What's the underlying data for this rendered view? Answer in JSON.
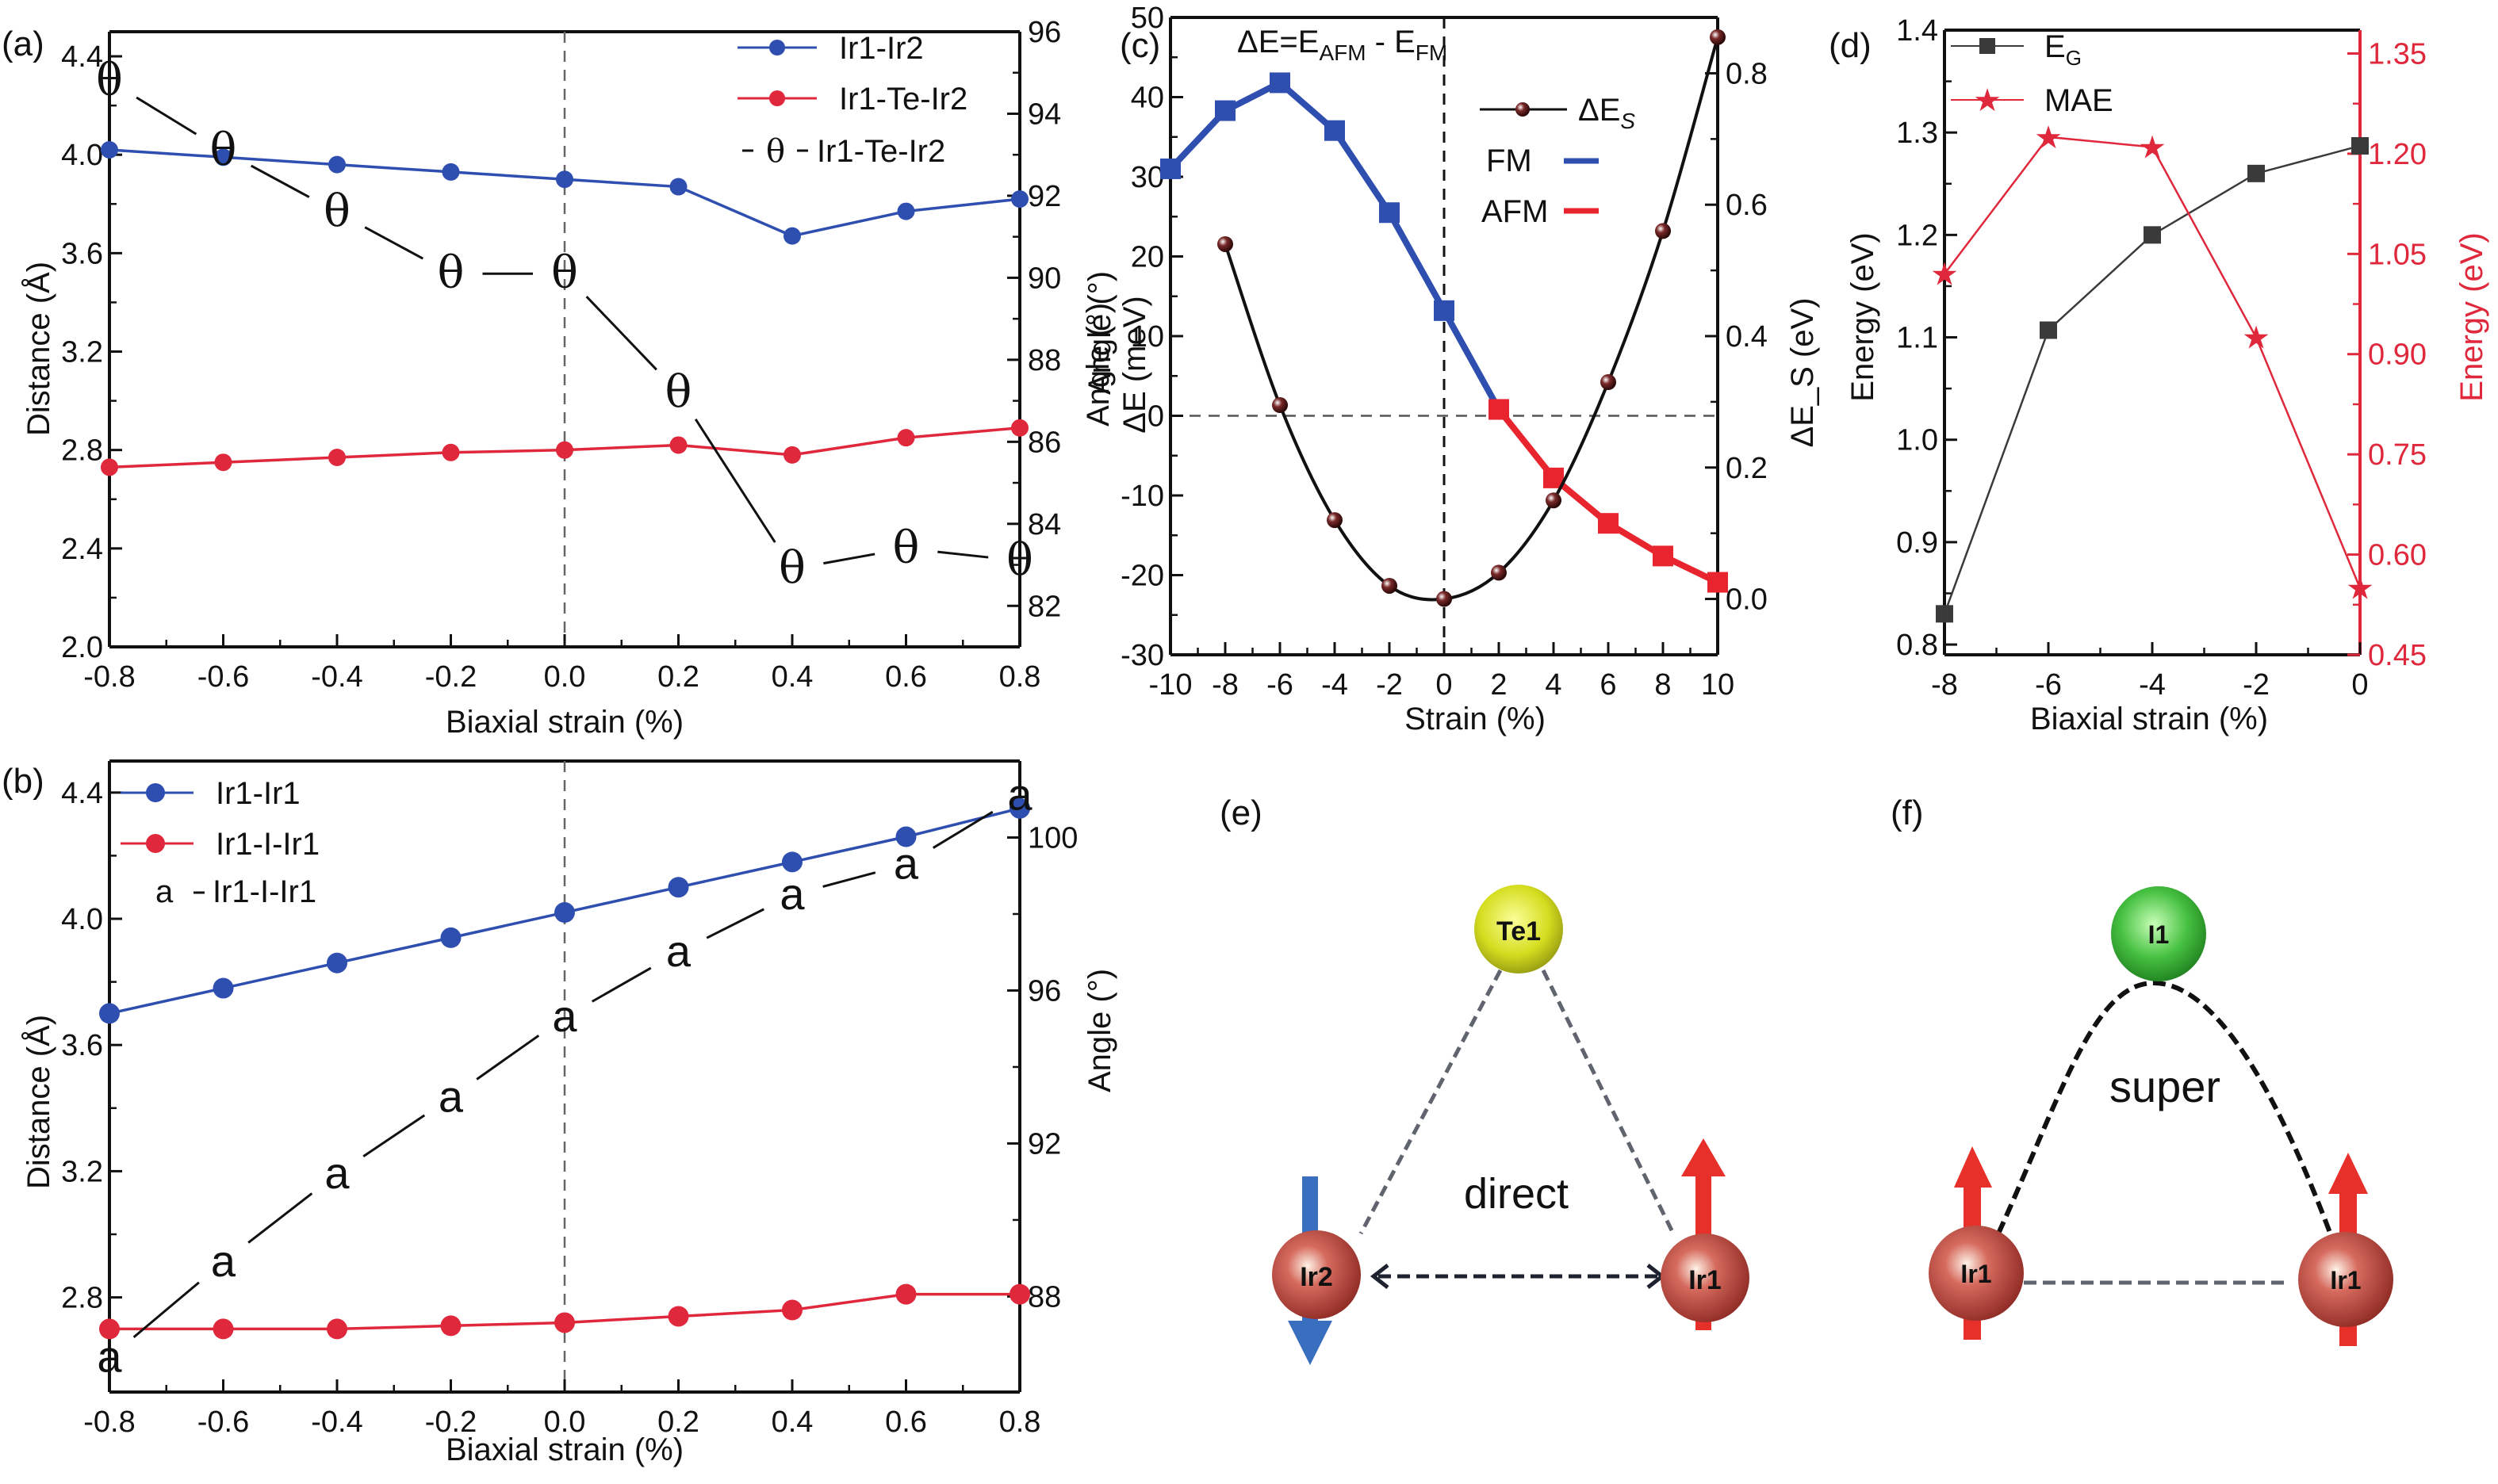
{
  "figure": {
    "panels": {
      "a": {
        "label": "(a)"
      },
      "b": {
        "label": "(b)"
      },
      "c": {
        "label": "(c)",
        "annotation": "ΔE=E_AFM - E_FM",
        "annotation_main": "ΔE=E",
        "annotation_sub1": "AFM",
        "annotation_mid": " - E",
        "annotation_sub2": "FM"
      },
      "d": {
        "label": "(d)"
      },
      "e": {
        "label": "(e)",
        "top_atom": "Te1",
        "left_atom": "Ir2",
        "right_atom": "Ir1",
        "exchange_label": "direct",
        "left_spin": "down",
        "right_spin": "up"
      },
      "f": {
        "label": "(f)",
        "top_atom": "I1",
        "left_atom": "Ir1",
        "right_atom": "Ir1",
        "exchange_label": "super",
        "left_spin": "up",
        "right_spin": "up"
      }
    },
    "colors": {
      "blue": "#2f4fb0",
      "red": "#e0283c",
      "black": "#111111",
      "brown": "#5a1a1a",
      "fm_blue": "#2f4fb0",
      "afm_red": "#e8252f",
      "mae_red": "#e0283c",
      "eg_gray": "#3a3a3a",
      "te_yellow": "#d8e030",
      "i_green": "#3fb83f",
      "ir_red": "#c0443c",
      "spin_blue": "#3a6fc0",
      "spin_red": "#e8302a"
    }
  },
  "chart_data": [
    {
      "id": "a",
      "type": "line",
      "xlabel": "Biaxial strain (%)",
      "ylabel": "Distance (Å)",
      "y2label": "Angle (°)",
      "x": [
        -0.8,
        -0.6,
        -0.4,
        -0.2,
        0.0,
        0.2,
        0.4,
        0.6,
        0.8
      ],
      "xticks": [
        "-0.8",
        "-0.6",
        "-0.4",
        "-0.2",
        "0.0",
        "0.2",
        "0.4",
        "0.6",
        "0.8"
      ],
      "xlim": [
        -0.8,
        0.8
      ],
      "ylim": [
        2.0,
        4.5
      ],
      "yticks": [
        "2.0",
        "2.4",
        "2.8",
        "3.2",
        "3.6",
        "4.0",
        "4.4"
      ],
      "y2lim": [
        81.0,
        96.0
      ],
      "y2ticks": [
        "82",
        "84",
        "86",
        "88",
        "90",
        "92",
        "94",
        "96"
      ],
      "vline_x": 0.0,
      "legend": "top-right",
      "series": [
        {
          "name": "Ir1-Ir2",
          "axis": "left",
          "marker": "circle",
          "color": "#2f4fb0",
          "values": [
            4.02,
            3.99,
            3.96,
            3.93,
            3.9,
            3.87,
            3.67,
            3.77,
            3.82
          ]
        },
        {
          "name": "Ir1-Te-Ir2",
          "axis": "left",
          "marker": "circle",
          "color": "#e0283c",
          "values": [
            2.73,
            2.75,
            2.77,
            2.79,
            2.8,
            2.82,
            2.78,
            2.85,
            2.89
          ]
        },
        {
          "name": "Ir1-Te-Ir2",
          "axis": "right",
          "marker": "θ",
          "color": "#111111",
          "values": [
            94.8,
            93.1,
            91.6,
            90.1,
            90.1,
            87.2,
            82.9,
            83.4,
            83.1
          ]
        }
      ],
      "legend_labels": [
        "Ir1-Ir2",
        "Ir1-Te-Ir2",
        "Ir1-Te-Ir2"
      ],
      "legend_symbol_angle": "θ"
    },
    {
      "id": "b",
      "type": "line",
      "xlabel": "Biaxial strain (%)",
      "ylabel": "Distance (Å)",
      "y2label": "Angle (°)",
      "x": [
        -0.8,
        -0.6,
        -0.4,
        -0.2,
        0.0,
        0.2,
        0.4,
        0.6,
        0.8
      ],
      "xticks": [
        "-0.8",
        "-0.6",
        "-0.4",
        "-0.2",
        "0.0",
        "0.2",
        "0.4",
        "0.6",
        "0.8"
      ],
      "xlim": [
        -0.8,
        0.8
      ],
      "ylim": [
        2.5,
        4.5
      ],
      "yticks": [
        "2.8",
        "3.2",
        "3.6",
        "4.0",
        "4.4"
      ],
      "y2lim": [
        85.5,
        102.0
      ],
      "y2ticks": [
        "88",
        "92",
        "96",
        "100"
      ],
      "vline_x": 0.0,
      "legend": "top-left",
      "series": [
        {
          "name": "Ir1-Ir1",
          "axis": "left",
          "marker": "circle",
          "color": "#2f4fb0",
          "values": [
            3.7,
            3.78,
            3.86,
            3.94,
            4.02,
            4.1,
            4.18,
            4.26,
            4.35
          ]
        },
        {
          "name": "Ir1-I-Ir1",
          "axis": "left",
          "marker": "circle",
          "color": "#e0283c",
          "values": [
            2.7,
            2.7,
            2.7,
            2.71,
            2.72,
            2.74,
            2.76,
            2.81,
            2.81
          ]
        },
        {
          "name": "Ir1-I-Ir1",
          "axis": "right",
          "marker": "a",
          "color": "#111111",
          "values": [
            86.4,
            88.9,
            91.2,
            93.2,
            95.3,
            97.0,
            98.5,
            99.3,
            101.1
          ]
        }
      ],
      "legend_labels": [
        "Ir1-Ir1",
        "Ir1-I-Ir1",
        "Ir1-I-Ir1"
      ],
      "legend_symbol_angle": "a"
    },
    {
      "id": "c",
      "type": "line",
      "xlabel": "Strain (%)",
      "ylabel_line1": "Angle (°)",
      "ylabel_line2": "ΔE (meV)",
      "y2label": "ΔE_S (eV)",
      "x": [
        -10,
        -8,
        -6,
        -4,
        -2,
        0,
        2,
        4,
        6,
        8,
        10
      ],
      "xticks": [
        "-10",
        "-8",
        "-6",
        "-4",
        "-2",
        "0",
        "2",
        "4",
        "6",
        "8",
        "10"
      ],
      "xlim": [
        -10,
        10
      ],
      "ylim": [
        -30,
        50
      ],
      "yticks": [
        "-30",
        "-20",
        "-10",
        "0",
        "10",
        "20",
        "30",
        "40",
        "50"
      ],
      "y2lim": [
        -0.085,
        0.885
      ],
      "y2ticks": [
        "0.0",
        "0.2",
        "0.4",
        "0.6",
        "0.8"
      ],
      "hline_y": 0,
      "vline_x": 0,
      "series": [
        {
          "name": "ΔE (FM)",
          "axis": "left",
          "marker": "square",
          "color": "#2f4fb0",
          "x": [
            -10,
            -8,
            -6,
            -4,
            -2,
            0,
            2
          ],
          "values": [
            31.0,
            38.3,
            41.8,
            35.8,
            25.5,
            13.2,
            0.8
          ]
        },
        {
          "name": "ΔE (AFM)",
          "axis": "left",
          "marker": "square",
          "color": "#e8252f",
          "x": [
            2,
            4,
            6,
            8,
            10
          ],
          "values": [
            0.8,
            -7.8,
            -13.5,
            -17.6,
            -20.9
          ]
        },
        {
          "name": "ΔE_S",
          "axis": "right",
          "marker": "sphere",
          "color": "#111111",
          "x": [
            -8,
            -6,
            -4,
            -2,
            0,
            2,
            4,
            6,
            8,
            10
          ],
          "values": [
            0.54,
            0.295,
            0.12,
            0.02,
            0.0,
            0.04,
            0.15,
            0.33,
            0.56,
            0.855
          ]
        }
      ],
      "legend": {
        "des_label": "ΔE",
        "des_sub": "S",
        "fm_label": "FM",
        "afm_label": "AFM"
      }
    },
    {
      "id": "d",
      "type": "line",
      "xlabel": "Biaxial strain (%)",
      "ylabel": "Energy (eV)",
      "y2label": "Energy (eV)",
      "x": [
        -8,
        -6,
        -4,
        -2,
        0
      ],
      "xticks": [
        "-8",
        "-6",
        "-4",
        "-2",
        "0"
      ],
      "xlim": [
        -8,
        0
      ],
      "ylim": [
        0.79,
        1.4
      ],
      "yticks": [
        "0.8",
        "0.9",
        "1.0",
        "1.1",
        "1.2",
        "1.3",
        "1.4"
      ],
      "y2lim": [
        0.45,
        1.385
      ],
      "y2ticks": [
        "0.45",
        "0.60",
        "0.75",
        "0.90",
        "1.05",
        "1.20",
        "1.35"
      ],
      "legend": "top-left",
      "series": [
        {
          "name": "E_G",
          "label_main": "E",
          "label_sub": "G",
          "axis": "left",
          "marker": "square",
          "color": "#3a3a3a",
          "values": [
            0.83,
            1.107,
            1.2,
            1.26,
            1.287
          ]
        },
        {
          "name": "MAE",
          "label_main": "MAE",
          "label_sub": "",
          "axis": "right",
          "marker": "star",
          "color": "#e0283c",
          "values": [
            1.02,
            1.225,
            1.21,
            0.925,
            0.55
          ]
        }
      ]
    }
  ]
}
